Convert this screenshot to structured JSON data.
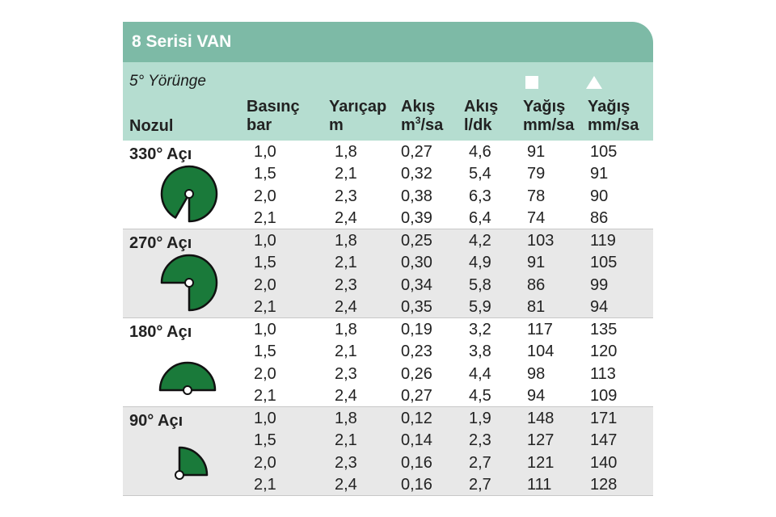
{
  "title": "8 Serisi VAN",
  "trajectory": "5° Yörünge",
  "headers": {
    "nozzle": "Nozul",
    "pressure": [
      "Basınç",
      "bar"
    ],
    "radius": [
      "Yarıçap",
      "m"
    ],
    "flow_m3": [
      "Akış",
      "m",
      "3",
      "/sa"
    ],
    "flow_l": [
      "Akış",
      "l/dk"
    ],
    "precip_square": [
      "Yağış",
      "mm/sa"
    ],
    "precip_triangle": [
      "Yağış",
      "mm/sa"
    ]
  },
  "icons": [
    "square-spacing-icon",
    "triangle-spacing-icon",
    "330-degree-arc-icon",
    "270-degree-arc-icon",
    "180-degree-arc-icon",
    "90-degree-arc-icon"
  ],
  "colors": {
    "title_bar": "#7dbaa6",
    "header_bg": "#b5ddd0",
    "row_alt": "#e8e8e8",
    "nozzle_fill": "#1a7a3a"
  },
  "groups": [
    {
      "label": "330° Açı",
      "arc_degrees": 330,
      "rows": [
        [
          "1,0",
          "1,8",
          "0,27",
          "4,6",
          "91",
          "105"
        ],
        [
          "1,5",
          "2,1",
          "0,32",
          "5,4",
          "79",
          "91"
        ],
        [
          "2,0",
          "2,3",
          "0,38",
          "6,3",
          "78",
          "90"
        ],
        [
          "2,1",
          "2,4",
          "0,39",
          "6,4",
          "74",
          "86"
        ]
      ]
    },
    {
      "label": "270° Açı",
      "arc_degrees": 270,
      "rows": [
        [
          "1,0",
          "1,8",
          "0,25",
          "4,2",
          "103",
          "119"
        ],
        [
          "1,5",
          "2,1",
          "0,30",
          "4,9",
          "91",
          "105"
        ],
        [
          "2,0",
          "2,3",
          "0,34",
          "5,8",
          "86",
          "99"
        ],
        [
          "2,1",
          "2,4",
          "0,35",
          "5,9",
          "81",
          "94"
        ]
      ]
    },
    {
      "label": "180° Açı",
      "arc_degrees": 180,
      "rows": [
        [
          "1,0",
          "1,8",
          "0,19",
          "3,2",
          "117",
          "135"
        ],
        [
          "1,5",
          "2,1",
          "0,23",
          "3,8",
          "104",
          "120"
        ],
        [
          "2,0",
          "2,3",
          "0,26",
          "4,4",
          "98",
          "113"
        ],
        [
          "2,1",
          "2,4",
          "0,27",
          "4,5",
          "94",
          "109"
        ]
      ]
    },
    {
      "label": "90° Açı",
      "arc_degrees": 90,
      "rows": [
        [
          "1,0",
          "1,8",
          "0,12",
          "1,9",
          "148",
          "171"
        ],
        [
          "1,5",
          "2,1",
          "0,14",
          "2,3",
          "127",
          "147"
        ],
        [
          "2,0",
          "2,3",
          "0,16",
          "2,7",
          "121",
          "140"
        ],
        [
          "2,1",
          "2,4",
          "0,16",
          "2,7",
          "111",
          "128"
        ]
      ]
    }
  ]
}
